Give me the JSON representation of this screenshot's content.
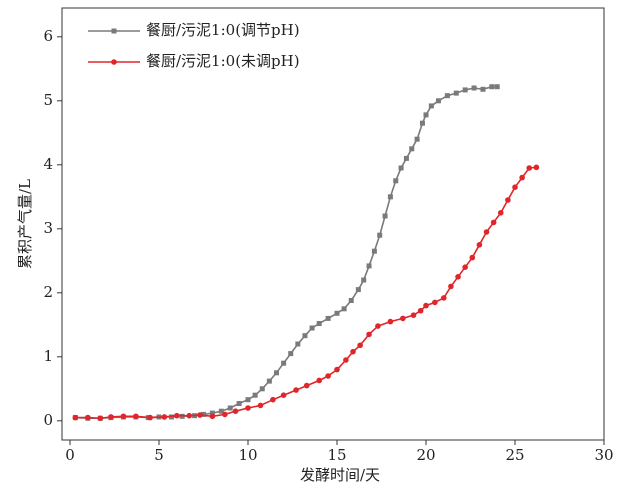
{
  "chart_data": {
    "type": "line",
    "x_label": "发酵时间/天",
    "y_label": "累积产气量/L",
    "xlim": [
      -0.45,
      30
    ],
    "ylim": [
      -0.3,
      6.45
    ],
    "xticks": [
      0,
      5,
      10,
      15,
      20,
      25,
      30
    ],
    "yticks": [
      0,
      1,
      2,
      3,
      4,
      5,
      6
    ],
    "legend": "upper-left",
    "series": [
      {
        "name": "餐厨/污泥1:0(调节pH)",
        "color": "#7a7a7a",
        "marker": "square",
        "x": [
          0.3,
          1,
          1.7,
          2.3,
          3,
          3.7,
          4.4,
          5,
          5.7,
          6.3,
          7,
          7.5,
          8,
          8.5,
          9,
          9.5,
          10,
          10.4,
          10.8,
          11.2,
          11.6,
          12,
          12.4,
          12.8,
          13.2,
          13.6,
          14,
          14.5,
          15,
          15.4,
          15.8,
          16.2,
          16.5,
          16.8,
          17.1,
          17.4,
          17.7,
          18,
          18.3,
          18.6,
          18.9,
          19.2,
          19.5,
          19.8,
          20,
          20.3,
          20.7,
          21.2,
          21.7,
          22.2,
          22.7,
          23.2,
          23.7,
          24
        ],
        "values": [
          0.05,
          0.04,
          0.04,
          0.05,
          0.06,
          0.06,
          0.05,
          0.06,
          0.06,
          0.07,
          0.08,
          0.1,
          0.12,
          0.15,
          0.2,
          0.27,
          0.33,
          0.4,
          0.5,
          0.62,
          0.75,
          0.9,
          1.05,
          1.2,
          1.33,
          1.45,
          1.52,
          1.6,
          1.68,
          1.75,
          1.88,
          2.05,
          2.2,
          2.42,
          2.65,
          2.9,
          3.2,
          3.5,
          3.75,
          3.95,
          4.1,
          4.25,
          4.4,
          4.65,
          4.78,
          4.92,
          5.0,
          5.08,
          5.12,
          5.17,
          5.2,
          5.18,
          5.22,
          5.22
        ]
      },
      {
        "name": "餐厨/污泥1:0(未调pH)",
        "color": "#e0262b",
        "marker": "circle",
        "x": [
          0.3,
          1,
          1.7,
          2.3,
          3,
          3.7,
          4.5,
          5.3,
          6,
          6.7,
          7.3,
          8,
          8.7,
          9.3,
          10,
          10.7,
          11.4,
          12,
          12.7,
          13.3,
          14,
          14.5,
          15,
          15.5,
          15.9,
          16.3,
          16.8,
          17.3,
          18,
          18.7,
          19.3,
          19.7,
          20,
          20.5,
          21,
          21.4,
          21.8,
          22.2,
          22.6,
          23,
          23.4,
          23.8,
          24.2,
          24.6,
          25,
          25.4,
          25.8,
          26.2
        ],
        "values": [
          0.05,
          0.05,
          0.04,
          0.06,
          0.07,
          0.07,
          0.05,
          0.06,
          0.08,
          0.08,
          0.09,
          0.07,
          0.1,
          0.15,
          0.2,
          0.24,
          0.33,
          0.4,
          0.48,
          0.55,
          0.63,
          0.7,
          0.8,
          0.95,
          1.08,
          1.18,
          1.35,
          1.48,
          1.55,
          1.6,
          1.65,
          1.72,
          1.8,
          1.85,
          1.92,
          2.1,
          2.25,
          2.4,
          2.55,
          2.75,
          2.95,
          3.1,
          3.25,
          3.45,
          3.65,
          3.8,
          3.95,
          3.96
        ]
      }
    ]
  }
}
